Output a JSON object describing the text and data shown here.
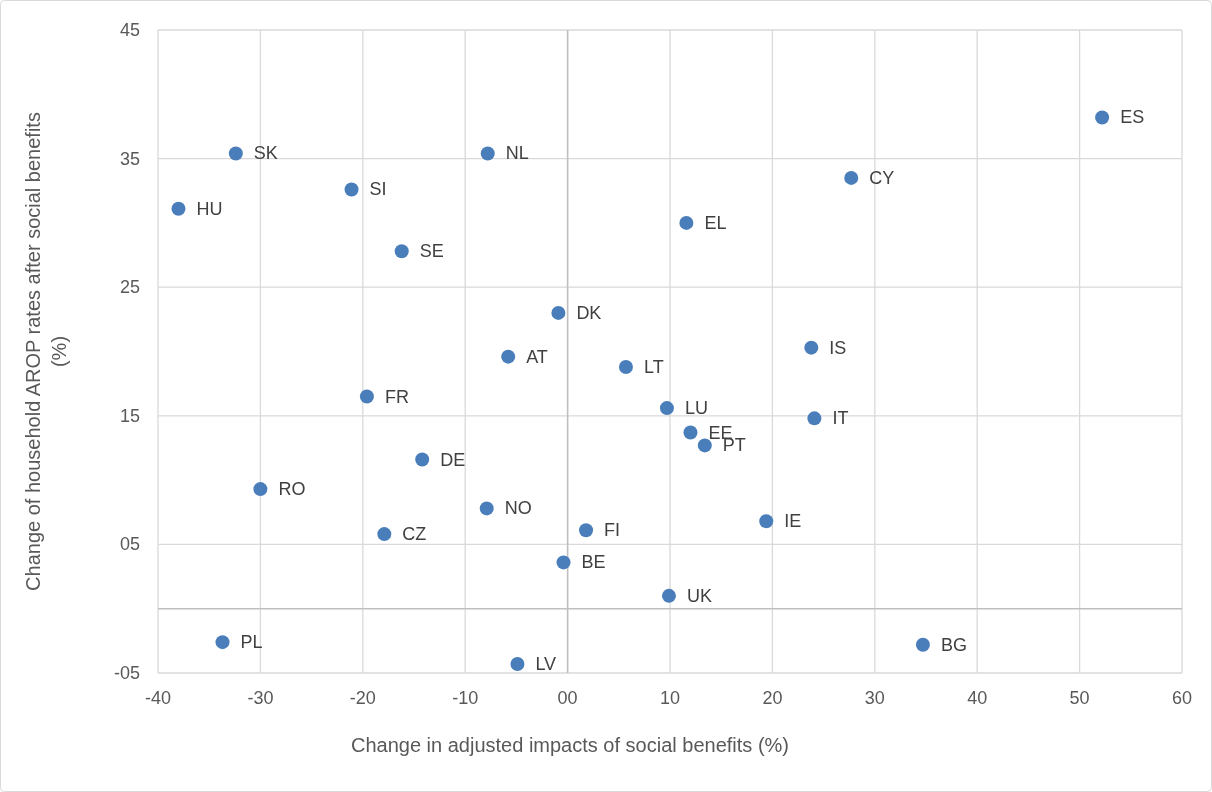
{
  "chart_data": {
    "type": "scatter",
    "xlabel": "Change in adjusted impacts of social benefits (%)",
    "ylabel": "Change of household AROP rates after social benefits (%)",
    "x": [
      52.2,
      -32.4,
      -7.8,
      -21.1,
      -38.0,
      27.7,
      11.6,
      -16.2,
      -0.9,
      -5.8,
      5.7,
      23.8,
      -19.6,
      9.7,
      24.1,
      12.0,
      13.4,
      -14.2,
      -30.0,
      -7.9,
      1.8,
      19.4,
      -17.9,
      -0.4,
      9.9,
      -33.7,
      34.7,
      -4.9
    ],
    "values": [
      38.2,
      35.4,
      35.4,
      32.6,
      31.1,
      33.5,
      30.0,
      27.8,
      23.0,
      19.6,
      18.8,
      20.3,
      16.5,
      15.6,
      14.8,
      13.7,
      12.7,
      11.6,
      9.3,
      7.8,
      6.1,
      6.8,
      5.8,
      3.6,
      1.0,
      -2.6,
      -2.8,
      -4.3
    ],
    "value_labels": [
      "ES",
      "SK",
      "NL",
      "SI",
      "HU",
      "CY",
      "EL",
      "SE",
      "DK",
      "AT",
      "LT",
      "IS",
      "FR",
      "LU",
      "IT",
      "EE",
      "PT",
      "DE",
      "RO",
      "NO",
      "FI",
      "IE",
      "CZ",
      "BE",
      "UK",
      "PL",
      "BG",
      "LV"
    ],
    "color": "#4a7ebb",
    "marker": "circle",
    "xlim": [
      -40,
      60
    ],
    "xticks": [
      -40,
      -30,
      -20,
      -10,
      {
        "value": 0,
        "label": "00"
      },
      10,
      20,
      30,
      40,
      50,
      60
    ],
    "ylim": [
      -5,
      45
    ],
    "yticks": [
      {
        "value": -5,
        "label": "-05"
      },
      {
        "value": 5,
        "label": "05"
      },
      15,
      25,
      35,
      45
    ],
    "grid": true
  }
}
